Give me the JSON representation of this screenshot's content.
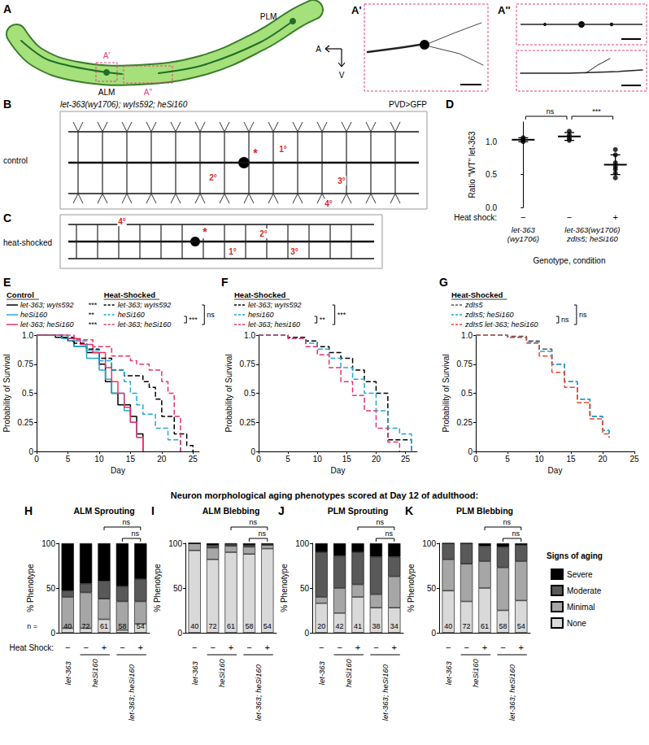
{
  "figure": {
    "panel_A": {
      "label": "A",
      "soma_labels": [
        "ALM",
        "PLM"
      ],
      "box_labels": [
        "A'",
        "A''"
      ],
      "axes": [
        "A",
        "V"
      ]
    },
    "panel_A_images": [
      {
        "label": "A'"
      },
      {
        "label": "A''"
      }
    ],
    "panel_B": {
      "label": "B",
      "genotype": "let-363(wy1706); wyIs592; heSi160",
      "reporter": "PVD>GFP",
      "condition": "control",
      "annotations": [
        "1°",
        "2°",
        "3°",
        "4°"
      ],
      "soma": "*"
    },
    "panel_C": {
      "label": "C",
      "condition": "heat-shocked",
      "annotations": [
        "1°",
        "2°",
        "3°",
        "4°"
      ],
      "soma": "*"
    },
    "section_title": "Neuron morphological aging phenotypes scored at Day 12 of adulthood:"
  },
  "chart_data": [
    {
      "panel": "D",
      "type": "scatter",
      "ylabel": "Ratio \"WT\" let-363",
      "xlabel": "Genotype, condition",
      "categories": [
        "let-363 (wy1706)",
        "let-363(wy1706) zdIs5; heSi160",
        "let-363(wy1706) zdIs5; heSi160"
      ],
      "heat_shock_label": "Heat shock:",
      "heat_shock": [
        "−",
        "−",
        "+"
      ],
      "values": [
        [
          1.0,
          1.03,
          1.06
        ],
        [
          1.02,
          1.05,
          1.1,
          1.16
        ],
        [
          0.45,
          0.52,
          0.58,
          0.62,
          0.68,
          0.8,
          0.88
        ]
      ],
      "means": [
        1.03,
        1.08,
        0.65
      ],
      "sd": [
        0.03,
        0.06,
        0.15
      ],
      "color": "#000000",
      "ylim": [
        0,
        1.3
      ],
      "yticks": [
        {
          "value": 0,
          "label": "0.0"
        },
        0.5,
        {
          "value": 1,
          "label": "1.0"
        }
      ],
      "comparisons": [
        {
          "pair": [
            0,
            1
          ],
          "label": "ns"
        },
        {
          "pair": [
            1,
            2
          ],
          "label": "***"
        }
      ],
      "grid": false
    },
    {
      "panel": "E",
      "type": "line",
      "xlabel": "Day",
      "ylabel": "Probability of Survival",
      "xlim": [
        0,
        26
      ],
      "xticks": [
        0,
        5,
        10,
        15,
        20,
        25
      ],
      "ylim": [
        0,
        1
      ],
      "yticks": [
        0,
        0.25,
        0.5,
        0.75,
        {
          "value": 1,
          "label": "1.0"
        }
      ],
      "legend": "top",
      "grid": false,
      "group_titles": [
        "Control",
        "Heat-Shocked"
      ],
      "series": [
        {
          "name": "let-363; wyIs592",
          "group": "Control",
          "color": "#000000",
          "line_style": "solid",
          "x": [
            0,
            3,
            5,
            6,
            8,
            10,
            11,
            12,
            13,
            15,
            16,
            17
          ],
          "values": [
            1,
            0.98,
            0.95,
            0.9,
            0.85,
            0.75,
            0.6,
            0.5,
            0.4,
            0.3,
            0.15,
            0
          ]
        },
        {
          "name": "heSi160",
          "group": "Control",
          "color": "#1fa8d8",
          "line_style": "solid",
          "x": [
            0,
            4,
            6,
            8,
            10,
            11,
            12,
            14,
            15,
            16,
            17
          ],
          "values": [
            1,
            0.97,
            0.9,
            0.8,
            0.7,
            0.62,
            0.5,
            0.35,
            0.25,
            0.12,
            0
          ]
        },
        {
          "name": "let-363; heSi160",
          "group": "Control",
          "color": "#e8336d",
          "line_style": "solid",
          "x": [
            0,
            5,
            7,
            9,
            11,
            12,
            13,
            14,
            15,
            16,
            17
          ],
          "values": [
            1,
            0.97,
            0.92,
            0.85,
            0.72,
            0.6,
            0.5,
            0.38,
            0.25,
            0.12,
            0
          ]
        },
        {
          "name": "let-363; wyIs592",
          "group": "Heat-Shocked",
          "color": "#000000",
          "line_style": "dashed",
          "x": [
            0,
            4,
            6,
            8,
            10,
            12,
            14,
            17,
            18,
            19,
            20,
            22,
            24,
            25
          ],
          "values": [
            1,
            0.98,
            0.93,
            0.88,
            0.8,
            0.7,
            0.65,
            0.6,
            0.55,
            0.45,
            0.3,
            0.15,
            0.05,
            0
          ]
        },
        {
          "name": "heSi160",
          "group": "Heat-Shocked",
          "color": "#1fa8d8",
          "line_style": "dashed",
          "x": [
            0,
            5,
            8,
            10,
            12,
            14,
            15,
            16,
            17,
            19,
            21,
            23
          ],
          "values": [
            1,
            0.95,
            0.87,
            0.78,
            0.7,
            0.6,
            0.5,
            0.4,
            0.32,
            0.2,
            0.1,
            0
          ]
        },
        {
          "name": "let-363; heSi160",
          "group": "Heat-Shocked",
          "color": "#e8336d",
          "line_style": "dashed",
          "x": [
            0,
            6,
            9,
            12,
            15,
            16,
            18,
            20,
            21,
            22,
            23
          ],
          "values": [
            1,
            0.96,
            0.9,
            0.82,
            0.78,
            0.75,
            0.7,
            0.6,
            0.5,
            0.3,
            0
          ]
        }
      ],
      "row_comparisons": [
        "***",
        "**",
        "***"
      ],
      "comparisons": [
        {
          "group": "Heat-Shocked",
          "pair": [
            1,
            2
          ],
          "label": "***"
        },
        {
          "group": "Heat-Shocked",
          "pair": [
            0,
            2
          ],
          "label": "ns"
        }
      ]
    },
    {
      "panel": "F",
      "type": "line",
      "xlabel": "Day",
      "ylabel": "Probability of Survival",
      "xlim": [
        0,
        27
      ],
      "xticks": [
        0,
        5,
        10,
        15,
        20,
        25
      ],
      "ylim": [
        0,
        1
      ],
      "yticks": [
        0,
        0.25,
        0.5,
        0.75,
        {
          "value": 1,
          "label": "1.0"
        }
      ],
      "legend": "top",
      "grid": false,
      "group_titles": [
        "Heat-Shocked"
      ],
      "series": [
        {
          "name": "let-363; wyIs592",
          "group": "Heat-Shocked",
          "color": "#000000",
          "line_style": "dashed",
          "x": [
            0,
            5,
            8,
            10,
            12,
            14,
            16,
            18,
            20,
            22,
            26
          ],
          "values": [
            1,
            0.98,
            0.95,
            0.9,
            0.85,
            0.8,
            0.7,
            0.6,
            0.5,
            0.1,
            0
          ]
        },
        {
          "name": "hesi160",
          "group": "Heat-Shocked",
          "color": "#1fa8d8",
          "line_style": "dashed",
          "x": [
            0,
            5,
            8,
            10,
            12,
            14,
            16,
            18,
            20,
            22,
            24,
            26
          ],
          "values": [
            1,
            0.97,
            0.93,
            0.88,
            0.8,
            0.72,
            0.62,
            0.5,
            0.35,
            0.2,
            0.15,
            0
          ]
        },
        {
          "name": "let-363; hesi160",
          "group": "Heat-Shocked",
          "color": "#e8336d",
          "line_style": "dashed",
          "x": [
            0,
            5,
            8,
            10,
            12,
            14,
            16,
            18,
            20,
            22,
            24
          ],
          "values": [
            1,
            0.97,
            0.9,
            0.83,
            0.72,
            0.6,
            0.48,
            0.35,
            0.2,
            0.08,
            0
          ]
        }
      ],
      "comparisons": [
        {
          "group": "Heat-Shocked",
          "pair": [
            1,
            2
          ],
          "label": "**"
        },
        {
          "group": "Heat-Shocked",
          "pair": [
            0,
            2
          ],
          "label": "***"
        }
      ]
    },
    {
      "panel": "G",
      "type": "line",
      "xlabel": "Day",
      "ylabel": "Probability of Survival",
      "xlim": [
        0,
        25
      ],
      "xticks": [
        0,
        5,
        10,
        15,
        20,
        25
      ],
      "ylim": [
        0,
        1
      ],
      "yticks": [
        0,
        0.25,
        0.5,
        0.75,
        {
          "value": 1,
          "label": "1.0"
        }
      ],
      "legend": "top",
      "grid": false,
      "group_titles": [
        "Heat-Shocked"
      ],
      "series": [
        {
          "name": "zdIs5",
          "group": "Heat-Shocked",
          "color": "#555555",
          "line_style": "dashed",
          "x": [
            0,
            5,
            8,
            10,
            12,
            14,
            16,
            18,
            20,
            21
          ],
          "values": [
            1,
            0.99,
            0.95,
            0.88,
            0.75,
            0.6,
            0.45,
            0.3,
            0.18,
            0.13
          ]
        },
        {
          "name": "zdIs5; heSi160",
          "group": "Heat-Shocked",
          "color": "#1fa8d8",
          "line_style": "dashed",
          "x": [
            0,
            5,
            8,
            10,
            12,
            14,
            16,
            18,
            20,
            21
          ],
          "values": [
            1,
            0.98,
            0.94,
            0.86,
            0.75,
            0.6,
            0.45,
            0.3,
            0.18,
            0.12
          ]
        },
        {
          "name": "zdIs5 let-363; heSi160",
          "group": "Heat-Shocked",
          "color": "#e8462e",
          "line_style": "dashed",
          "x": [
            0,
            5,
            8,
            10,
            12,
            14,
            16,
            18,
            20,
            21
          ],
          "values": [
            1,
            0.98,
            0.93,
            0.82,
            0.68,
            0.55,
            0.42,
            0.28,
            0.15,
            0.12
          ]
        }
      ],
      "comparisons": [
        {
          "group": "Heat-Shocked",
          "pair": [
            1,
            2
          ],
          "label": "ns"
        },
        {
          "group": "Heat-Shocked",
          "pair": [
            0,
            2
          ],
          "label": "ns"
        }
      ]
    },
    {
      "panel": "H",
      "type": "bar",
      "title": "ALM Sprouting",
      "ylabel": "% Phenotype",
      "categories": [
        "let-363",
        "heSi160",
        "heSi160",
        "let-363; heSi160",
        "let-363; heSi160"
      ],
      "heat_shock_label": "Heat Shock:",
      "heat_shock": [
        "−",
        "−",
        "+",
        "−",
        "+"
      ],
      "n_label": "n =",
      "n": [
        40,
        72,
        61,
        58,
        54
      ],
      "stacked": true,
      "grid": false,
      "ylim": [
        0,
        100
      ],
      "yticks": [
        0,
        50,
        100
      ],
      "series": [
        {
          "name": "None",
          "color": "#d9d9d9",
          "values": [
            5,
            5,
            15,
            3,
            10
          ]
        },
        {
          "name": "Minimal",
          "color": "#a6a6a6",
          "values": [
            35,
            40,
            23,
            32,
            25
          ]
        },
        {
          "name": "Moderate",
          "color": "#595959",
          "values": [
            7,
            10,
            20,
            17,
            25
          ]
        },
        {
          "name": "Severe",
          "color": "#000000",
          "values": [
            53,
            45,
            42,
            48,
            40
          ]
        }
      ],
      "comparisons": [
        {
          "pair": [
            2,
            4
          ],
          "label": "ns"
        },
        {
          "pair": [
            3,
            4
          ],
          "label": "ns"
        }
      ]
    },
    {
      "panel": "I",
      "type": "bar",
      "title": "ALM Blebbing",
      "ylabel": "% Phenotype",
      "categories": [
        "let-363",
        "heSi160",
        "heSi160",
        "let-363; heSi160",
        "let-363; heSi160"
      ],
      "heat_shock": [
        "−",
        "−",
        "+",
        "−",
        "+"
      ],
      "n": [
        40,
        72,
        61,
        58,
        54
      ],
      "stacked": true,
      "grid": false,
      "ylim": [
        0,
        100
      ],
      "yticks": [
        0,
        50,
        100
      ],
      "series": [
        {
          "name": "None",
          "color": "#d9d9d9",
          "values": [
            92,
            82,
            90,
            88,
            94
          ]
        },
        {
          "name": "Minimal",
          "color": "#a6a6a6",
          "values": [
            8,
            13,
            7,
            8,
            4
          ]
        },
        {
          "name": "Moderate",
          "color": "#595959",
          "values": [
            0,
            3,
            2,
            2,
            1
          ]
        },
        {
          "name": "Severe",
          "color": "#000000",
          "values": [
            0,
            2,
            1,
            2,
            1
          ]
        }
      ],
      "comparisons": [
        {
          "pair": [
            2,
            4
          ],
          "label": "ns"
        },
        {
          "pair": [
            3,
            4
          ],
          "label": "ns"
        }
      ]
    },
    {
      "panel": "J",
      "type": "bar",
      "title": "PLM Sprouting",
      "ylabel": "% Phenotype",
      "categories": [
        "let-363",
        "heSi160",
        "heSi160",
        "let-363; heSi160",
        "let-363; heSi160"
      ],
      "heat_shock": [
        "−",
        "−",
        "+",
        "−",
        "+"
      ],
      "n": [
        20,
        42,
        41,
        38,
        34
      ],
      "stacked": true,
      "grid": false,
      "ylim": [
        0,
        100
      ],
      "yticks": [
        0,
        50,
        100
      ],
      "series": [
        {
          "name": "None",
          "color": "#d9d9d9",
          "values": [
            33,
            22,
            40,
            28,
            28
          ]
        },
        {
          "name": "Minimal",
          "color": "#a6a6a6",
          "values": [
            7,
            28,
            14,
            15,
            35
          ]
        },
        {
          "name": "Moderate",
          "color": "#595959",
          "values": [
            50,
            36,
            36,
            42,
            22
          ]
        },
        {
          "name": "Severe",
          "color": "#000000",
          "values": [
            10,
            14,
            10,
            15,
            15
          ]
        }
      ],
      "comparisons": [
        {
          "pair": [
            2,
            4
          ],
          "label": "ns"
        },
        {
          "pair": [
            3,
            4
          ],
          "label": "ns"
        }
      ]
    },
    {
      "panel": "K",
      "type": "bar",
      "title": "PLM Blebbing",
      "ylabel": "% Phenotype",
      "categories": [
        "let-363",
        "heSi160",
        "heSi160",
        "let-363; heSi160",
        "let-363; heSi160"
      ],
      "heat_shock": [
        "−",
        "−",
        "+",
        "−",
        "+"
      ],
      "n": [
        40,
        72,
        61,
        58,
        54
      ],
      "stacked": true,
      "grid": false,
      "ylim": [
        0,
        100
      ],
      "yticks": [
        0,
        50,
        100
      ],
      "legend": "right",
      "legend_title": "Signs of aging",
      "series": [
        {
          "name": "None",
          "color": "#d9d9d9",
          "values": [
            47,
            35,
            50,
            25,
            36
          ]
        },
        {
          "name": "Minimal",
          "color": "#a6a6a6",
          "values": [
            35,
            42,
            30,
            48,
            44
          ]
        },
        {
          "name": "Moderate",
          "color": "#595959",
          "values": [
            18,
            23,
            17,
            23,
            18
          ]
        },
        {
          "name": "Severe",
          "color": "#000000",
          "values": [
            0,
            0,
            3,
            4,
            2
          ]
        }
      ],
      "comparisons": [
        {
          "pair": [
            2,
            4
          ],
          "label": "ns"
        },
        {
          "pair": [
            3,
            4
          ],
          "label": "ns"
        }
      ]
    }
  ]
}
